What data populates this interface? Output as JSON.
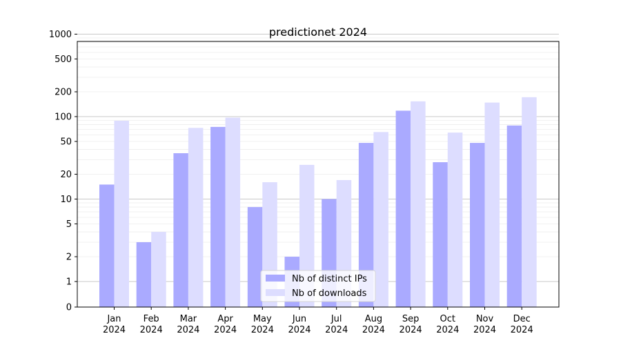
{
  "chart_data": {
    "type": "bar",
    "title": "predictionet 2024",
    "xlabel": "",
    "ylabel": "",
    "yscale": "symlog",
    "ylim": [
      0,
      1300
    ],
    "categories": [
      [
        "Jan",
        "2024"
      ],
      [
        "Feb",
        "2024"
      ],
      [
        "Mar",
        "2024"
      ],
      [
        "Apr",
        "2024"
      ],
      [
        "May",
        "2024"
      ],
      [
        "Jun",
        "2024"
      ],
      [
        "Jul",
        "2024"
      ],
      [
        "Aug",
        "2024"
      ],
      [
        "Sep",
        "2024"
      ],
      [
        "Oct",
        "2024"
      ],
      [
        "Nov",
        "2024"
      ],
      [
        "Dec",
        "2024"
      ]
    ],
    "yticks": [
      0,
      1,
      2,
      5,
      10,
      20,
      50,
      100,
      200,
      500,
      1000
    ],
    "ytick_labels": [
      "0",
      "1",
      "2",
      "5",
      "10",
      "20",
      "50",
      "100",
      "200",
      "500",
      "1000"
    ],
    "grid": true,
    "legend_position": "bottom-center",
    "series": [
      {
        "name": "Nb of distinct IPs",
        "color": "#aaaaff",
        "values": [
          15,
          3,
          36,
          75,
          8,
          2,
          10,
          48,
          118,
          28,
          48,
          78
        ]
      },
      {
        "name": "Nb of downloads",
        "color": "#ddddff",
        "values": [
          89,
          4,
          73,
          97,
          16,
          26,
          17,
          65,
          153,
          64,
          148,
          172
        ]
      }
    ]
  }
}
